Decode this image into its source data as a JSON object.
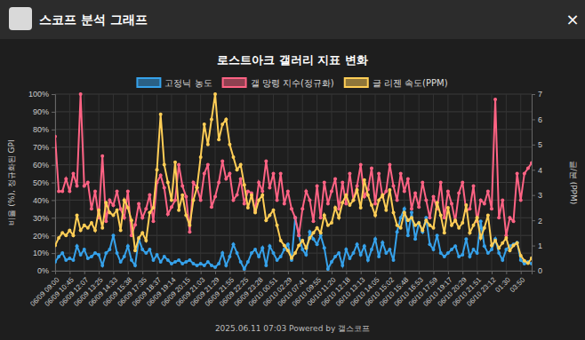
{
  "header": {
    "title": "스코프 분석 그래프",
    "close": "×"
  },
  "footer": "2025.06.11 07:03 Powered by 갤스코프",
  "chart_data": {
    "type": "line",
    "title": "로스트아크 갤러리 지표 변화",
    "y_label": "비율 (%), 정규화된 GPI",
    "y2_label": "글/분 (PPM)",
    "grid": true,
    "legend": "top",
    "marker": "circle",
    "categories": [
      "06/09 09:00",
      null,
      null,
      null,
      "06/09 10:45",
      null,
      null,
      null,
      "06/09 12:07",
      null,
      null,
      null,
      "06/09 13:25",
      null,
      null,
      null,
      "06/09 14:33",
      null,
      null,
      null,
      "06/09 15:38",
      null,
      null,
      null,
      "06/09 17:35",
      null,
      null,
      null,
      "06/09 18:37",
      null,
      null,
      null,
      "06/09 19:14",
      null,
      null,
      null,
      "06/09 20:15",
      null,
      null,
      null,
      "06/09 21:03",
      null,
      null,
      null,
      "06/09 21:29",
      null,
      null,
      null,
      "06/09 21:55",
      null,
      null,
      null,
      "06/09 22:25",
      null,
      null,
      null,
      "06/09 23:28",
      null,
      null,
      null,
      "06/10 00:51",
      null,
      null,
      null,
      "06/10 02:29",
      null,
      null,
      null,
      "06/10 07:41",
      null,
      null,
      null,
      "06/10 09:55",
      null,
      null,
      null,
      "06/10 11:20",
      null,
      null,
      null,
      "06/10 12:18",
      null,
      null,
      null,
      "06/10 13:13",
      null,
      null,
      null,
      "06/10 14:05",
      null,
      null,
      null,
      "06/10 15:02",
      null,
      null,
      null,
      "06/10 15:48",
      null,
      null,
      null,
      "06/10 16:53",
      null,
      null,
      null,
      "06/10 17:59",
      null,
      null,
      null,
      "06/10 19:17",
      null,
      null,
      null,
      "06/10 20:29",
      null,
      null,
      null,
      "06/10 21:51",
      null,
      null,
      null,
      "06/10 23:12",
      null,
      null,
      null,
      "01:30",
      null,
      null,
      null,
      "03:50",
      null,
      null,
      null
    ],
    "ylim": [
      0,
      100
    ],
    "yticks": [
      {
        "value": 0,
        "label": "0%"
      },
      {
        "value": 10,
        "label": "10%"
      },
      {
        "value": 20,
        "label": "20%"
      },
      {
        "value": 30,
        "label": "30%"
      },
      {
        "value": 40,
        "label": "40%"
      },
      {
        "value": 50,
        "label": "50%"
      },
      {
        "value": 60,
        "label": "60%"
      },
      {
        "value": 70,
        "label": "70%"
      },
      {
        "value": 80,
        "label": "80%"
      },
      {
        "value": 90,
        "label": "90%"
      },
      {
        "value": 100,
        "label": "100%"
      }
    ],
    "y2lim": [
      0,
      7
    ],
    "y2ticks": [
      0,
      1,
      2,
      3,
      4,
      5,
      6,
      7
    ],
    "series": [
      {
        "name": "고정닉 농도",
        "color": "#36a2eb",
        "values": [
          5,
          8,
          10,
          6,
          7,
          6,
          14,
          9,
          12,
          7,
          8,
          10,
          9,
          3,
          10,
          12,
          20,
          10,
          5,
          8,
          14,
          6,
          3,
          18,
          12,
          10,
          12,
          6,
          9,
          5,
          8,
          6,
          4,
          5,
          6,
          4,
          5,
          6,
          4,
          3,
          4,
          3,
          5,
          3,
          2,
          4,
          10,
          3,
          8,
          15,
          10,
          5,
          1,
          5,
          10,
          12,
          8,
          13,
          3,
          14,
          10,
          6,
          8,
          12,
          15,
          6,
          30,
          20,
          12,
          9,
          22,
          18,
          15,
          20,
          13,
          1,
          5,
          8,
          10,
          3,
          12,
          7,
          10,
          15,
          9,
          14,
          6,
          12,
          18,
          8,
          16,
          10,
          12,
          6,
          22,
          30,
          35,
          20,
          33,
          18,
          27,
          22,
          30,
          15,
          12,
          20,
          10,
          8,
          10,
          12,
          14,
          8,
          9,
          18,
          8,
          12,
          10,
          28,
          14,
          10,
          12,
          18,
          10,
          6,
          12,
          14,
          15,
          16,
          6,
          4,
          5,
          4
        ]
      },
      {
        "name": "갤 망령 지수(정규화)",
        "color": "#ff6384",
        "values": [
          76,
          45,
          45,
          52,
          45,
          55,
          48,
          100,
          48,
          50,
          35,
          45,
          30,
          65,
          28,
          40,
          37,
          45,
          35,
          30,
          45,
          20,
          26,
          38,
          30,
          35,
          43,
          28,
          50,
          54,
          47,
          32,
          36,
          40,
          60,
          48,
          42,
          22,
          50,
          47,
          40,
          55,
          60,
          36,
          42,
          50,
          62,
          52,
          55,
          40,
          43,
          52,
          38,
          45,
          44,
          34,
          50,
          45,
          62,
          47,
          55,
          40,
          55,
          38,
          45,
          35,
          30,
          20,
          35,
          45,
          40,
          28,
          48,
          30,
          50,
          38,
          45,
          52,
          35,
          50,
          38,
          55,
          40,
          48,
          60,
          42,
          46,
          58,
          38,
          55,
          42,
          45,
          60,
          48,
          40,
          55,
          45,
          52,
          35,
          44,
          36,
          50,
          40,
          30,
          42,
          35,
          50,
          30,
          45,
          38,
          28,
          44,
          50,
          34,
          35,
          48,
          28,
          40,
          38,
          45,
          35,
          97,
          30,
          40,
          20,
          30,
          28,
          55,
          40,
          55,
          58,
          61
        ]
      },
      {
        "name": "글 리젠 속도(PPM)",
        "color": "#ffce56",
        "axis": "y2",
        "values": [
          1.0,
          1.3,
          1.5,
          1.4,
          1.6,
          1.4,
          2.2,
          1.6,
          1.8,
          1.7,
          1.9,
          1.6,
          2.4,
          1.7,
          2.7,
          2.3,
          2.2,
          2.4,
          1.6,
          2.8,
          2.5,
          2.0,
          0.8,
          1.3,
          1.5,
          1.2,
          2.3,
          2.5,
          4.0,
          6.2,
          4.2,
          3.5,
          2.8,
          4.3,
          2.4,
          3.0,
          2.2,
          1.8,
          2.8,
          3.3,
          4.5,
          5.8,
          5.0,
          6.0,
          7.0,
          5.2,
          5.8,
          6.0,
          5.0,
          4.5,
          4.0,
          4.2,
          3.4,
          2.5,
          3.0,
          2.3,
          2.8,
          3.0,
          2.0,
          2.2,
          2.4,
          1.8,
          1.2,
          1.0,
          0.8,
          0.5,
          0.7,
          1.0,
          1.2,
          0.9,
          1.3,
          1.5,
          1.7,
          1.5,
          2.2,
          1.8,
          1.9,
          2.5,
          2.1,
          2.7,
          3.0,
          2.6,
          2.8,
          3.2,
          2.5,
          3.6,
          3.0,
          2.6,
          2.2,
          2.8,
          3.0,
          2.4,
          3.2,
          2.3,
          1.8,
          1.7,
          2.3,
          2.0,
          2.1,
          1.8,
          1.9,
          1.6,
          2.0,
          1.8,
          1.7,
          2.7,
          2.2,
          1.5,
          2.5,
          1.8,
          2.0,
          1.7,
          1.9,
          2.6,
          1.5,
          1.8,
          2.1,
          1.3,
          1.7,
          2.2,
          1.0,
          1.2,
          0.9,
          1.1,
          1.3,
          0.8,
          1.0,
          1.1,
          0.6,
          0.4,
          0.3,
          0.5
        ]
      }
    ]
  }
}
